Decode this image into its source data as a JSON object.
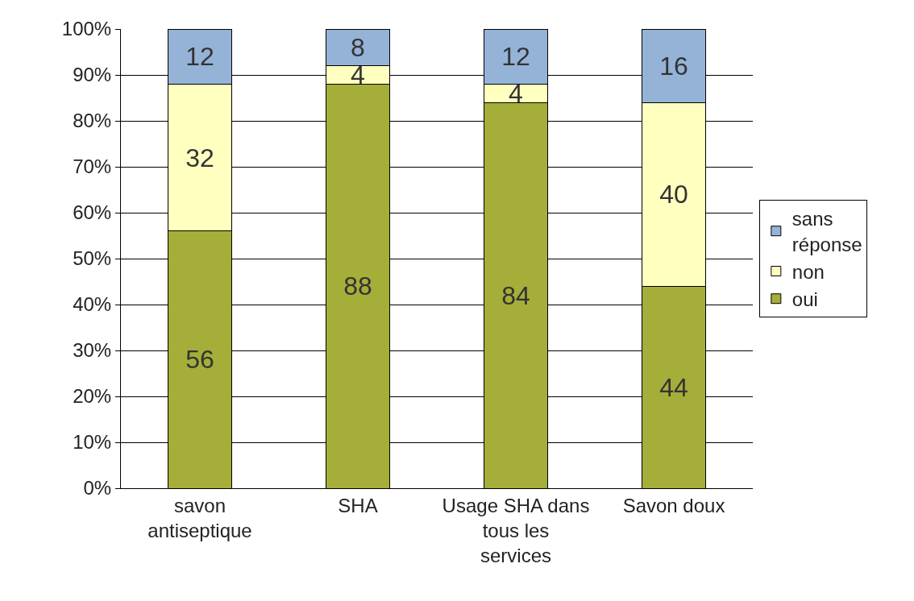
{
  "chart_data": {
    "type": "bar",
    "stacked": true,
    "categories": [
      "savon antiseptique",
      "SHA",
      "Usage SHA dans tous les services",
      "Savon doux"
    ],
    "series": [
      {
        "name": "oui",
        "color": "#a5ae38",
        "values": [
          56,
          88,
          84,
          44
        ]
      },
      {
        "name": "non",
        "color": "#ffffc0",
        "values": [
          32,
          4,
          4,
          40
        ]
      },
      {
        "name": "sans réponse",
        "color": "#95b3d7",
        "values": [
          12,
          8,
          12,
          16
        ]
      }
    ],
    "ylim": [
      0,
      100
    ],
    "yticks": [
      {
        "value": 0,
        "label": "0%"
      },
      {
        "value": 10,
        "label": "10%"
      },
      {
        "value": 20,
        "label": "20%"
      },
      {
        "value": 30,
        "label": "30%"
      },
      {
        "value": 40,
        "label": "40%"
      },
      {
        "value": 50,
        "label": "50%"
      },
      {
        "value": 60,
        "label": "60%"
      },
      {
        "value": 70,
        "label": "70%"
      },
      {
        "value": 80,
        "label": "80%"
      },
      {
        "value": 90,
        "label": "90%"
      },
      {
        "value": 100,
        "label": "100%"
      }
    ],
    "grid": "y",
    "legend": "right",
    "data_labels": true
  }
}
